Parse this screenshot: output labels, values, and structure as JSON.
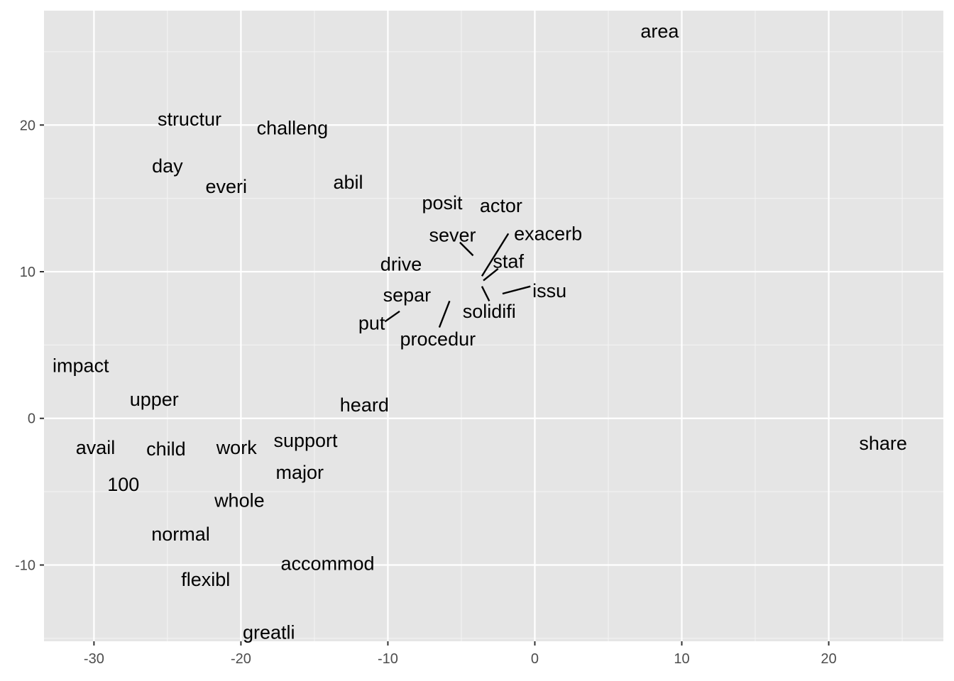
{
  "chart_data": {
    "type": "scatter",
    "title": "",
    "xlabel": "",
    "ylabel": "",
    "xlim": [
      -33.4,
      27.8
    ],
    "ylim": [
      -15.2,
      27.8
    ],
    "x_ticks": [
      -30,
      -20,
      -10,
      0,
      10,
      20
    ],
    "x_tick_labels": [
      "-30",
      "-20",
      "-10",
      "0",
      "10",
      "20"
    ],
    "y_ticks": [
      -10,
      0,
      10,
      20
    ],
    "y_tick_labels": [
      "-10",
      "0",
      "10",
      "20"
    ],
    "grid": true,
    "points": [
      {
        "label": "area",
        "x": 8.5,
        "y": 26.4
      },
      {
        "label": "structur",
        "x": -23.5,
        "y": 20.4
      },
      {
        "label": "challeng",
        "x": -16.5,
        "y": 19.8
      },
      {
        "label": "day",
        "x": -25.0,
        "y": 17.2
      },
      {
        "label": "everi",
        "x": -21.0,
        "y": 15.8
      },
      {
        "label": "abil",
        "x": -12.7,
        "y": 16.1
      },
      {
        "label": "posit",
        "x": -6.3,
        "y": 14.7
      },
      {
        "label": "actor",
        "x": -2.3,
        "y": 14.5
      },
      {
        "label": "sever",
        "x": -5.6,
        "y": 12.5
      },
      {
        "label": "exacerb",
        "x": 0.9,
        "y": 12.6
      },
      {
        "label": "staf",
        "x": -1.8,
        "y": 10.7
      },
      {
        "label": "drive",
        "x": -9.1,
        "y": 10.5
      },
      {
        "label": "issu",
        "x": 1.0,
        "y": 8.7
      },
      {
        "label": "separ",
        "x": -8.7,
        "y": 8.4
      },
      {
        "label": "solidifi",
        "x": -3.1,
        "y": 7.3
      },
      {
        "label": "put",
        "x": -11.1,
        "y": 6.5
      },
      {
        "label": "procedur",
        "x": -6.6,
        "y": 5.4
      },
      {
        "label": "impact",
        "x": -30.9,
        "y": 3.6
      },
      {
        "label": "upper",
        "x": -25.9,
        "y": 1.3
      },
      {
        "label": "heard",
        "x": -11.6,
        "y": 0.9
      },
      {
        "label": "support",
        "x": -15.6,
        "y": -1.5
      },
      {
        "label": "share",
        "x": 23.7,
        "y": -1.7
      },
      {
        "label": "avail",
        "x": -29.9,
        "y": -2.0
      },
      {
        "label": "child",
        "x": -25.1,
        "y": -2.1
      },
      {
        "label": "work",
        "x": -20.3,
        "y": -2.0
      },
      {
        "label": "major",
        "x": -16.0,
        "y": -3.7
      },
      {
        "label": "100",
        "x": -28.0,
        "y": -4.5
      },
      {
        "label": "whole",
        "x": -20.1,
        "y": -5.6
      },
      {
        "label": "normal",
        "x": -24.1,
        "y": -7.9
      },
      {
        "label": "accommod",
        "x": -14.1,
        "y": -9.9
      },
      {
        "label": "flexibl",
        "x": -22.4,
        "y": -11.0
      },
      {
        "label": "greatli",
        "x": -18.1,
        "y": -14.6
      }
    ],
    "leader_lines": [
      {
        "from": [
          -5.1,
          12.0
        ],
        "to": [
          -4.2,
          11.1
        ]
      },
      {
        "from": [
          -1.8,
          12.6
        ],
        "to": [
          -3.6,
          9.7
        ]
      },
      {
        "from": [
          -2.5,
          10.2
        ],
        "to": [
          -3.5,
          9.4
        ]
      },
      {
        "from": [
          -0.3,
          9.0
        ],
        "to": [
          -2.2,
          8.5
        ]
      },
      {
        "from": [
          -3.6,
          9.0
        ],
        "to": [
          -3.1,
          8.0
        ]
      },
      {
        "from": [
          -9.2,
          7.3
        ],
        "to": [
          -10.2,
          6.6
        ]
      },
      {
        "from": [
          -5.8,
          8.0
        ],
        "to": [
          -6.5,
          6.2
        ]
      }
    ]
  }
}
